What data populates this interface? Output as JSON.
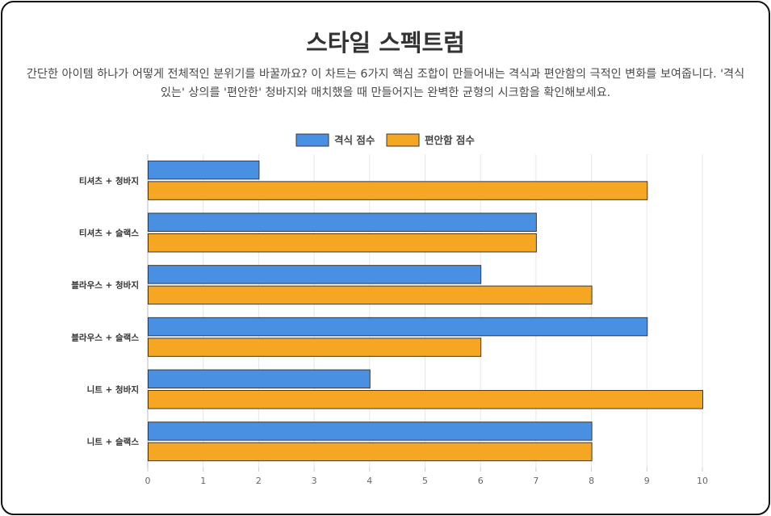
{
  "header": {
    "title": "스타일 스펙트럼",
    "subtitle": "간단한 아이템 하나가 어떻게 전체적인 분위기를 바꿀까요? 이 차트는 6가지 핵심 조합이 만들어내는 격식과 편안함의 극적인 변화를 보여줍니다. '격식 있는' 상의를 '편안한' 청바지와 매치했을 때 만들어지는 완벽한 균형의 시크함을 확인해보세요."
  },
  "chart_data": {
    "type": "bar",
    "orientation": "horizontal",
    "categories": [
      "티셔츠 + 청바지",
      "티셔츠 + 슬랙스",
      "블라우스 + 청바지",
      "블라우스 + 슬랙스",
      "니트 + 청바지",
      "니트 + 슬랙스"
    ],
    "series": [
      {
        "name": "격식 점수",
        "values": [
          2,
          7,
          6,
          9,
          4,
          8
        ],
        "color": "#4a90e2"
      },
      {
        "name": "편안함 점수",
        "values": [
          9,
          7,
          8,
          6,
          10,
          8
        ],
        "color": "#f5a623"
      }
    ],
    "xlim": [
      0,
      10
    ],
    "x_ticks": [
      "0",
      "1",
      "2",
      "3",
      "4",
      "5",
      "6",
      "7",
      "8",
      "9",
      "10"
    ],
    "grid": true,
    "legend_position": "top-center"
  }
}
